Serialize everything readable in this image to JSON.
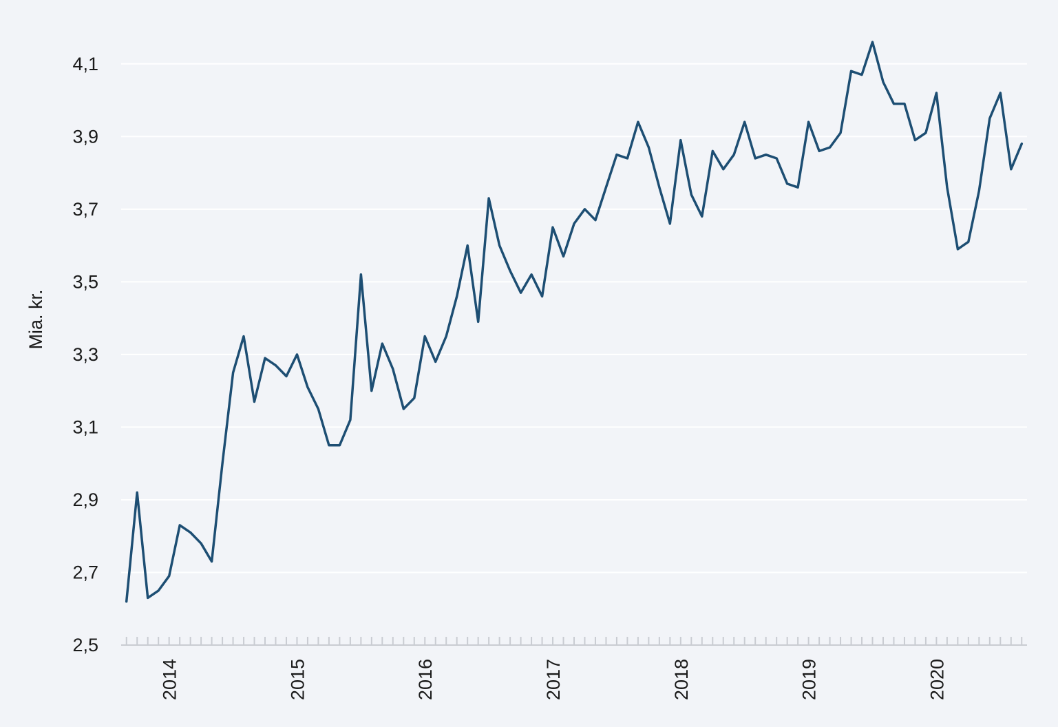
{
  "chart_data": {
    "type": "line",
    "title": "",
    "xlabel": "",
    "ylabel": "Mia. kr.",
    "ylim": [
      2.5,
      4.2
    ],
    "yticks": [
      2.5,
      2.7,
      2.9,
      3.1,
      3.3,
      3.5,
      3.7,
      3.9,
      4.1
    ],
    "ytick_labels": [
      "2,5",
      "2,7",
      "2,9",
      "3,1",
      "3,3",
      "3,5",
      "3,7",
      "3,9",
      "4,1"
    ],
    "xlim": [
      "2013-09",
      "2020-09"
    ],
    "xtick_labels": [
      "2014",
      "2015",
      "2016",
      "2017",
      "2018",
      "2019",
      "2020"
    ],
    "xtick_positions": [
      "2014-01",
      "2015-01",
      "2016-01",
      "2017-01",
      "2018-01",
      "2019-01",
      "2020-01"
    ],
    "grid": true,
    "legend": "none",
    "line_color": "#1d4e73",
    "series": [
      {
        "x": [
          "2013-09",
          "2013-10",
          "2013-11",
          "2013-12",
          "2014-01",
          "2014-02",
          "2014-03",
          "2014-04",
          "2014-05",
          "2014-06",
          "2014-07",
          "2014-08",
          "2014-09",
          "2014-10",
          "2014-11",
          "2014-12",
          "2015-01",
          "2015-02",
          "2015-03",
          "2015-04",
          "2015-05",
          "2015-06",
          "2015-07",
          "2015-08",
          "2015-09",
          "2015-10",
          "2015-11",
          "2015-12",
          "2016-01",
          "2016-02",
          "2016-03",
          "2016-04",
          "2016-05",
          "2016-06",
          "2016-07",
          "2016-08",
          "2016-09",
          "2016-10",
          "2016-11",
          "2016-12",
          "2017-01",
          "2017-02",
          "2017-03",
          "2017-04",
          "2017-05",
          "2017-06",
          "2017-07",
          "2017-08",
          "2017-09",
          "2017-10",
          "2017-11",
          "2017-12",
          "2018-01",
          "2018-02",
          "2018-03",
          "2018-04",
          "2018-05",
          "2018-06",
          "2018-07",
          "2018-08",
          "2018-09",
          "2018-10",
          "2018-11",
          "2018-12",
          "2019-01",
          "2019-02",
          "2019-03",
          "2019-04",
          "2019-05",
          "2019-06",
          "2019-07",
          "2019-08",
          "2019-09",
          "2019-10",
          "2019-11",
          "2019-12",
          "2020-01",
          "2020-02",
          "2020-03",
          "2020-04",
          "2020-05",
          "2020-06",
          "2020-07",
          "2020-08",
          "2020-09"
        ],
        "values": [
          2.62,
          2.92,
          2.63,
          2.65,
          2.69,
          2.83,
          2.81,
          2.78,
          2.73,
          3.0,
          3.25,
          3.35,
          3.17,
          3.29,
          3.27,
          3.24,
          3.3,
          3.21,
          3.15,
          3.05,
          3.05,
          3.12,
          3.52,
          3.2,
          3.33,
          3.26,
          3.15,
          3.18,
          3.35,
          3.28,
          3.35,
          3.46,
          3.6,
          3.39,
          3.73,
          3.6,
          3.53,
          3.47,
          3.52,
          3.46,
          3.65,
          3.57,
          3.66,
          3.7,
          3.67,
          3.76,
          3.85,
          3.84,
          3.94,
          3.87,
          3.76,
          3.66,
          3.89,
          3.74,
          3.68,
          3.86,
          3.81,
          3.85,
          3.94,
          3.84,
          3.85,
          3.84,
          3.77,
          3.76,
          3.94,
          3.86,
          3.87,
          3.91,
          4.08,
          4.07,
          4.16,
          4.05,
          3.99,
          3.99,
          3.89,
          3.91,
          4.02,
          3.76,
          3.59,
          3.61,
          3.75,
          3.95,
          4.02,
          3.81,
          3.88
        ]
      }
    ]
  }
}
